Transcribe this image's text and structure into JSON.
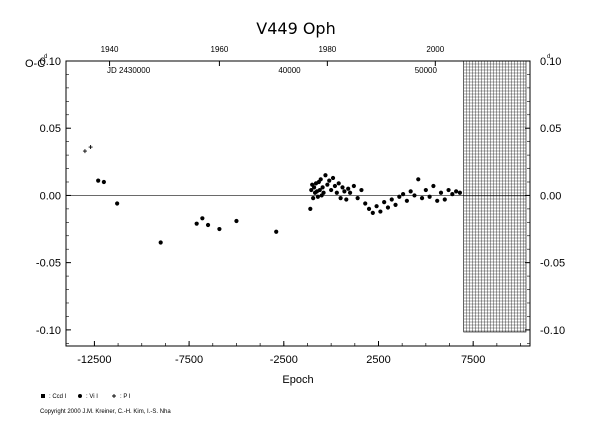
{
  "chart_data": {
    "type": "scatter",
    "title": "V449  Oph",
    "ylabel": "O-C",
    "xlabel": "Epoch",
    "xlim": [
      -14000,
      10500
    ],
    "ylim": [
      -0.112,
      0.1
    ],
    "y_superscript": "d",
    "x_ticks": [
      -12500,
      -7500,
      -2500,
      2500,
      7500
    ],
    "x_tick_labels": [
      "-12500",
      "-7500",
      "-2500",
      "2500",
      "7500"
    ],
    "y_ticks": [
      -0.1,
      -0.05,
      0.0,
      0.05,
      0.1
    ],
    "y_tick_labels": [
      "-0.10",
      "-0.05",
      "0.00",
      "0.05",
      "0.10"
    ],
    "jd_label": "JD 2430000",
    "jd_ticks": [
      {
        "epoch": -2200,
        "label": "40000"
      },
      {
        "epoch": 5000,
        "label": "50000"
      }
    ],
    "year_ticks": [
      {
        "epoch": -11700,
        "label": "1940"
      },
      {
        "epoch": -5900,
        "label": "1960"
      },
      {
        "epoch": -200,
        "label": "1980"
      },
      {
        "epoch": 5500,
        "label": "2000"
      }
    ],
    "hatched_region_start": 7000,
    "zero_line": 0.0,
    "grid": false,
    "legend": {
      "items": [
        {
          "symbol": "square",
          "label": ": Ccd I"
        },
        {
          "symbol": "diamond",
          "label": ": Vi I"
        },
        {
          "symbol": "plus",
          "label": ": P I"
        }
      ]
    },
    "series": [
      {
        "name": "P I",
        "symbol": "plus",
        "x": [
          -13000,
          -12700
        ],
        "y": [
          0.033,
          0.036
        ]
      },
      {
        "name": "Vi I",
        "symbol": "diamond",
        "x": [
          -12300,
          -12000,
          -11300,
          -9000,
          -7100,
          -6800,
          -6500,
          -5900,
          -5000,
          -2900,
          -1100,
          -1050,
          -1000,
          -950,
          -900,
          -850,
          -800,
          -750,
          -700,
          -650,
          -600,
          -550,
          -500,
          -450,
          -400,
          -300,
          -200,
          -100,
          0,
          100,
          200,
          300,
          400,
          500,
          600,
          700,
          800,
          900,
          1000,
          1200,
          1400,
          1600,
          1800,
          2000,
          2200,
          2400,
          2600,
          2800,
          3000,
          3200,
          3400,
          3600,
          3800,
          4000,
          4200,
          4400,
          4600,
          4800,
          5000,
          5200,
          5400,
          5600,
          5800,
          6000,
          6200,
          6400,
          6600,
          6800
        ],
        "y": [
          0.011,
          0.01,
          -0.006,
          -0.035,
          -0.021,
          -0.017,
          -0.022,
          -0.025,
          -0.019,
          -0.027,
          -0.01,
          0.004,
          0.008,
          -0.002,
          0.006,
          0.002,
          0.009,
          0.003,
          -0.001,
          0.01,
          0.004,
          0.012,
          0.0,
          0.006,
          0.002,
          0.015,
          0.008,
          0.011,
          0.004,
          0.013,
          0.007,
          0.002,
          0.009,
          -0.002,
          0.006,
          0.003,
          -0.003,
          0.005,
          0.002,
          0.007,
          -0.002,
          0.004,
          -0.006,
          -0.01,
          -0.013,
          -0.008,
          -0.012,
          -0.005,
          -0.009,
          -0.003,
          -0.007,
          -0.001,
          0.001,
          -0.004,
          0.003,
          0.0,
          0.012,
          -0.002,
          0.004,
          -0.001,
          0.007,
          -0.004,
          0.002,
          -0.003,
          0.004,
          0.001,
          0.003,
          0.002
        ]
      }
    ]
  },
  "copyright": "Copyright 2000 J.M. Kreiner, C.-H. Kim, I.-S. Nha"
}
